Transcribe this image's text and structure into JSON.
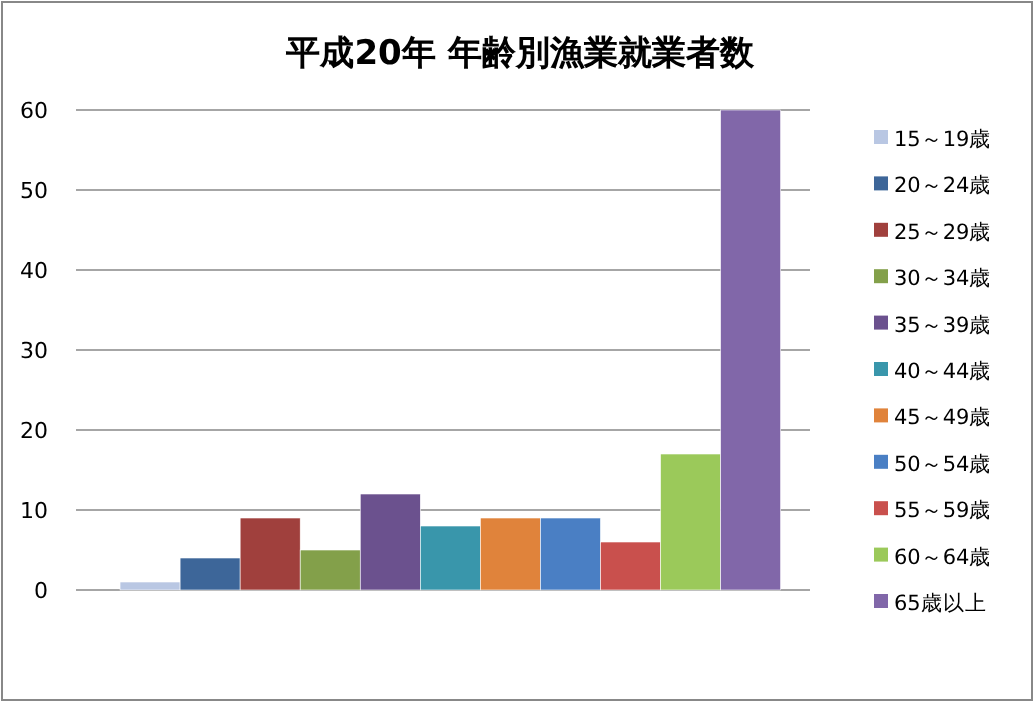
{
  "chart_data": {
    "type": "bar",
    "title": "平成20年  年齢別漁業就業者数",
    "categories": [
      null
    ],
    "ylim": [
      0,
      60
    ],
    "yticks": [
      0,
      10,
      20,
      30,
      40,
      50,
      60
    ],
    "grid": "y",
    "legend": "right",
    "series": [
      {
        "name": "15～19歳",
        "color": "#b9c7e3",
        "values": [
          1
        ]
      },
      {
        "name": "20～24歳",
        "color": "#3d6699",
        "values": [
          4
        ]
      },
      {
        "name": "25～29歳",
        "color": "#a0403d",
        "values": [
          9
        ]
      },
      {
        "name": "30～34歳",
        "color": "#83a04a",
        "values": [
          5
        ]
      },
      {
        "name": "35～39歳",
        "color": "#6b518e",
        "values": [
          12
        ]
      },
      {
        "name": "40～44歳",
        "color": "#3996ab",
        "values": [
          8
        ]
      },
      {
        "name": "45～49歳",
        "color": "#e0833b",
        "values": [
          9
        ]
      },
      {
        "name": "50～54歳",
        "color": "#4a7fc4",
        "values": [
          9
        ]
      },
      {
        "name": "55～59歳",
        "color": "#c9504d",
        "values": [
          6
        ]
      },
      {
        "name": "60～64歳",
        "color": "#9bc95a",
        "values": [
          17
        ]
      },
      {
        "name": "65歳以上",
        "color": "#8167a9",
        "values": [
          60
        ]
      }
    ]
  }
}
